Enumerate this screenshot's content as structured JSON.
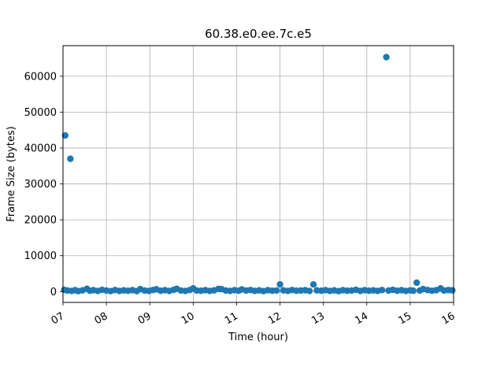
{
  "chart_data": {
    "type": "scatter",
    "title": "60.38.e0.ee.7c.e5",
    "xlabel": "Time (hour)",
    "ylabel": "Frame Size (bytes)",
    "x_unit": "hour",
    "xlim": [
      7.0,
      16.0
    ],
    "ylim": [
      -3000,
      68500
    ],
    "x_ticks": [
      7,
      8,
      9,
      10,
      11,
      12,
      13,
      14,
      15,
      16
    ],
    "x_tick_labels": [
      "07",
      "08",
      "09",
      "10",
      "11",
      "12",
      "13",
      "14",
      "15",
      "16"
    ],
    "y_ticks": [
      0,
      10000,
      20000,
      30000,
      40000,
      50000,
      60000
    ],
    "y_tick_labels": [
      "0",
      "10000",
      "20000",
      "30000",
      "40000",
      "50000",
      "60000"
    ],
    "grid": true,
    "marker_color": "#1f77b4",
    "series": [
      {
        "points": [
          {
            "x": 7.03,
            "y": 500
          },
          {
            "x": 7.05,
            "y": 43500
          },
          {
            "x": 7.1,
            "y": 300
          },
          {
            "x": 7.17,
            "y": 37000
          },
          {
            "x": 7.2,
            "y": 200
          },
          {
            "x": 7.28,
            "y": 400
          },
          {
            "x": 7.35,
            "y": 150
          },
          {
            "x": 7.45,
            "y": 350
          },
          {
            "x": 7.55,
            "y": 800
          },
          {
            "x": 7.62,
            "y": 250
          },
          {
            "x": 7.7,
            "y": 400
          },
          {
            "x": 7.8,
            "y": 200
          },
          {
            "x": 7.9,
            "y": 500
          },
          {
            "x": 8.0,
            "y": 300
          },
          {
            "x": 8.1,
            "y": 150
          },
          {
            "x": 8.2,
            "y": 450
          },
          {
            "x": 8.3,
            "y": 200
          },
          {
            "x": 8.4,
            "y": 350
          },
          {
            "x": 8.5,
            "y": 250
          },
          {
            "x": 8.6,
            "y": 400
          },
          {
            "x": 8.7,
            "y": 150
          },
          {
            "x": 8.78,
            "y": 700
          },
          {
            "x": 8.88,
            "y": 300
          },
          {
            "x": 8.98,
            "y": 200
          },
          {
            "x": 9.07,
            "y": 450
          },
          {
            "x": 9.15,
            "y": 650
          },
          {
            "x": 9.25,
            "y": 250
          },
          {
            "x": 9.35,
            "y": 400
          },
          {
            "x": 9.45,
            "y": 200
          },
          {
            "x": 9.55,
            "y": 500
          },
          {
            "x": 9.62,
            "y": 800
          },
          {
            "x": 9.72,
            "y": 300
          },
          {
            "x": 9.82,
            "y": 200
          },
          {
            "x": 9.92,
            "y": 450
          },
          {
            "x": 10.0,
            "y": 900
          },
          {
            "x": 10.08,
            "y": 300
          },
          {
            "x": 10.18,
            "y": 250
          },
          {
            "x": 10.28,
            "y": 400
          },
          {
            "x": 10.38,
            "y": 200
          },
          {
            "x": 10.48,
            "y": 350
          },
          {
            "x": 10.58,
            "y": 750
          },
          {
            "x": 10.65,
            "y": 700
          },
          {
            "x": 10.75,
            "y": 300
          },
          {
            "x": 10.85,
            "y": 200
          },
          {
            "x": 10.95,
            "y": 400
          },
          {
            "x": 11.05,
            "y": 250
          },
          {
            "x": 11.12,
            "y": 600
          },
          {
            "x": 11.22,
            "y": 300
          },
          {
            "x": 11.32,
            "y": 450
          },
          {
            "x": 11.42,
            "y": 200
          },
          {
            "x": 11.52,
            "y": 350
          },
          {
            "x": 11.62,
            "y": 150
          },
          {
            "x": 11.72,
            "y": 400
          },
          {
            "x": 11.82,
            "y": 250
          },
          {
            "x": 11.92,
            "y": 300
          },
          {
            "x": 12.0,
            "y": 2000
          },
          {
            "x": 12.08,
            "y": 350
          },
          {
            "x": 12.18,
            "y": 200
          },
          {
            "x": 12.28,
            "y": 450
          },
          {
            "x": 12.38,
            "y": 250
          },
          {
            "x": 12.48,
            "y": 300
          },
          {
            "x": 12.58,
            "y": 400
          },
          {
            "x": 12.68,
            "y": 200
          },
          {
            "x": 12.77,
            "y": 2000
          },
          {
            "x": 12.85,
            "y": 350
          },
          {
            "x": 12.95,
            "y": 250
          },
          {
            "x": 13.05,
            "y": 400
          },
          {
            "x": 13.15,
            "y": 200
          },
          {
            "x": 13.25,
            "y": 350
          },
          {
            "x": 13.35,
            "y": 150
          },
          {
            "x": 13.45,
            "y": 400
          },
          {
            "x": 13.55,
            "y": 250
          },
          {
            "x": 13.65,
            "y": 300
          },
          {
            "x": 13.75,
            "y": 500
          },
          {
            "x": 13.85,
            "y": 200
          },
          {
            "x": 13.95,
            "y": 400
          },
          {
            "x": 14.05,
            "y": 250
          },
          {
            "x": 14.15,
            "y": 350
          },
          {
            "x": 14.25,
            "y": 200
          },
          {
            "x": 14.35,
            "y": 450
          },
          {
            "x": 14.45,
            "y": 65300
          },
          {
            "x": 14.5,
            "y": 300
          },
          {
            "x": 14.6,
            "y": 500
          },
          {
            "x": 14.7,
            "y": 250
          },
          {
            "x": 14.8,
            "y": 400
          },
          {
            "x": 14.9,
            "y": 200
          },
          {
            "x": 15.0,
            "y": 350
          },
          {
            "x": 15.07,
            "y": 250
          },
          {
            "x": 15.15,
            "y": 2500
          },
          {
            "x": 15.22,
            "y": 300
          },
          {
            "x": 15.3,
            "y": 700
          },
          {
            "x": 15.4,
            "y": 450
          },
          {
            "x": 15.5,
            "y": 250
          },
          {
            "x": 15.6,
            "y": 400
          },
          {
            "x": 15.7,
            "y": 900
          },
          {
            "x": 15.78,
            "y": 300
          },
          {
            "x": 15.88,
            "y": 450
          },
          {
            "x": 15.97,
            "y": 350
          }
        ]
      }
    ]
  }
}
